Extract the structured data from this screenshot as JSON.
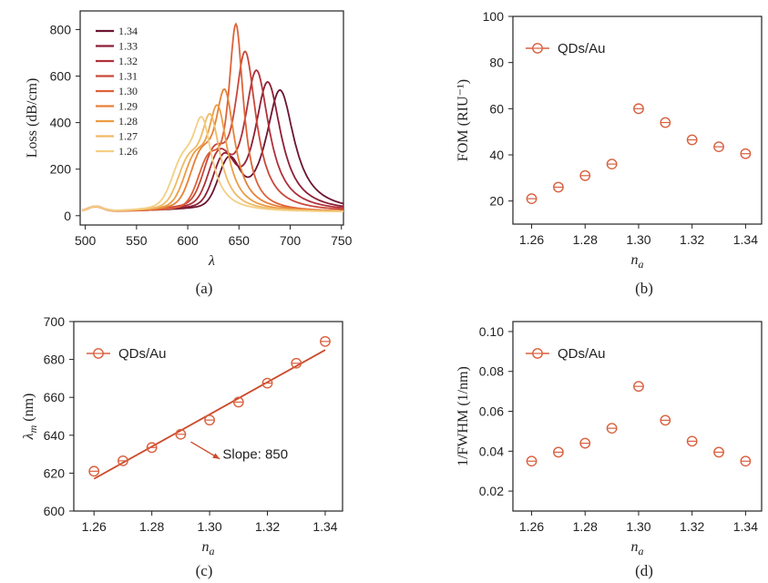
{
  "colors": {
    "marker": "#d9603f",
    "fit": "#cc4a2c",
    "axis": "#222222",
    "spectra": [
      "#6b1530",
      "#8e1e36",
      "#b0303a",
      "#c9473a",
      "#dd6238",
      "#e88138",
      "#eb9d45",
      "#efba67",
      "#f3cf85"
    ]
  },
  "chart_data": [
    {
      "id": "a",
      "type": "line",
      "caption": "(a)",
      "xlabel": "λ (nm)",
      "ylabel": "Loss (dB/cm)",
      "xlim": [
        495,
        752
      ],
      "ylim": [
        -40,
        880
      ],
      "xticks": [
        500,
        550,
        600,
        650,
        700,
        750
      ],
      "yticks": [
        0,
        200,
        400,
        600,
        800
      ],
      "legend_position": "top-left",
      "series": [
        {
          "name": "1.34",
          "peak_x": 690,
          "peak_y": 525,
          "width": 17,
          "shoulder_x": 640,
          "shoulder_y": 185,
          "shoulder_w": 14
        },
        {
          "name": "1.33",
          "peak_x": 678,
          "peak_y": 560,
          "width": 16,
          "shoulder_x": 635,
          "shoulder_y": 185,
          "shoulder_w": 14
        },
        {
          "name": "1.32",
          "peak_x": 667,
          "peak_y": 610,
          "width": 15,
          "shoulder_x": 630,
          "shoulder_y": 182,
          "shoulder_w": 14
        },
        {
          "name": "1.31",
          "peak_x": 656,
          "peak_y": 690,
          "width": 13,
          "shoulder_x": 625,
          "shoulder_y": 178,
          "shoulder_w": 14
        },
        {
          "name": "1.30",
          "peak_x": 647,
          "peak_y": 805,
          "width": 9,
          "shoulder_x": 620,
          "shoulder_y": 170,
          "shoulder_w": 14
        },
        {
          "name": "1.29",
          "peak_x": 636,
          "peak_y": 520,
          "width": 12,
          "shoulder_x": 612,
          "shoulder_y": 165,
          "shoulder_w": 14
        },
        {
          "name": "1.28",
          "peak_x": 629,
          "peak_y": 450,
          "width": 12,
          "shoulder_x": 606,
          "shoulder_y": 158,
          "shoulder_w": 14
        },
        {
          "name": "1.27",
          "peak_x": 622,
          "peak_y": 410,
          "width": 12,
          "shoulder_x": 600,
          "shoulder_y": 150,
          "shoulder_w": 14
        },
        {
          "name": "1.26",
          "peak_x": 614,
          "peak_y": 390,
          "width": 12,
          "shoulder_x": 594,
          "shoulder_y": 145,
          "shoulder_w": 14
        }
      ]
    },
    {
      "id": "b",
      "type": "scatter",
      "caption": "(b)",
      "xlabel": "na",
      "ylabel": "FOM (RIU⁻¹)",
      "xlim": [
        1.253,
        1.346
      ],
      "ylim": [
        10,
        100
      ],
      "xticks": [
        1.26,
        1.28,
        1.3,
        1.32,
        1.34
      ],
      "yticks": [
        20,
        40,
        60,
        80,
        100
      ],
      "legend_position": "top-left",
      "series": [
        {
          "name": "QDs/Au",
          "x": [
            1.26,
            1.27,
            1.28,
            1.29,
            1.3,
            1.31,
            1.32,
            1.33,
            1.34
          ],
          "y": [
            21,
            26,
            31,
            36,
            60,
            54,
            46.5,
            43.5,
            40.5
          ]
        }
      ]
    },
    {
      "id": "c",
      "type": "scatter",
      "caption": "(c)",
      "xlabel": "na",
      "ylabel": "λm (nm)",
      "xlim": [
        1.253,
        1.346
      ],
      "ylim": [
        600,
        700
      ],
      "xticks": [
        1.26,
        1.28,
        1.3,
        1.32,
        1.34
      ],
      "yticks": [
        600,
        620,
        640,
        660,
        680,
        700
      ],
      "legend_position": "top-left",
      "annotation": "Slope: 850",
      "fit": {
        "x": [
          1.26,
          1.34
        ],
        "y": [
          617,
          685
        ]
      },
      "series": [
        {
          "name": "QDs/Au",
          "x": [
            1.26,
            1.27,
            1.28,
            1.29,
            1.3,
            1.31,
            1.32,
            1.33,
            1.34
          ],
          "y": [
            621,
            626.5,
            633.5,
            640.5,
            648,
            657.5,
            667.5,
            678,
            689.5
          ]
        }
      ]
    },
    {
      "id": "d",
      "type": "scatter",
      "caption": "(d)",
      "xlabel": "na",
      "ylabel": "1/FWHM (1/nm)",
      "xlim": [
        1.253,
        1.346
      ],
      "ylim": [
        0.01,
        0.105
      ],
      "xticks": [
        1.26,
        1.28,
        1.3,
        1.32,
        1.34
      ],
      "yticks": [
        0.02,
        0.04,
        0.06,
        0.08,
        0.1
      ],
      "legend_position": "top-left",
      "series": [
        {
          "name": "QDs/Au",
          "x": [
            1.26,
            1.27,
            1.28,
            1.29,
            1.3,
            1.31,
            1.32,
            1.33,
            1.34
          ],
          "y": [
            0.035,
            0.0395,
            0.044,
            0.0515,
            0.0725,
            0.0555,
            0.045,
            0.0395,
            0.035
          ]
        }
      ]
    }
  ]
}
